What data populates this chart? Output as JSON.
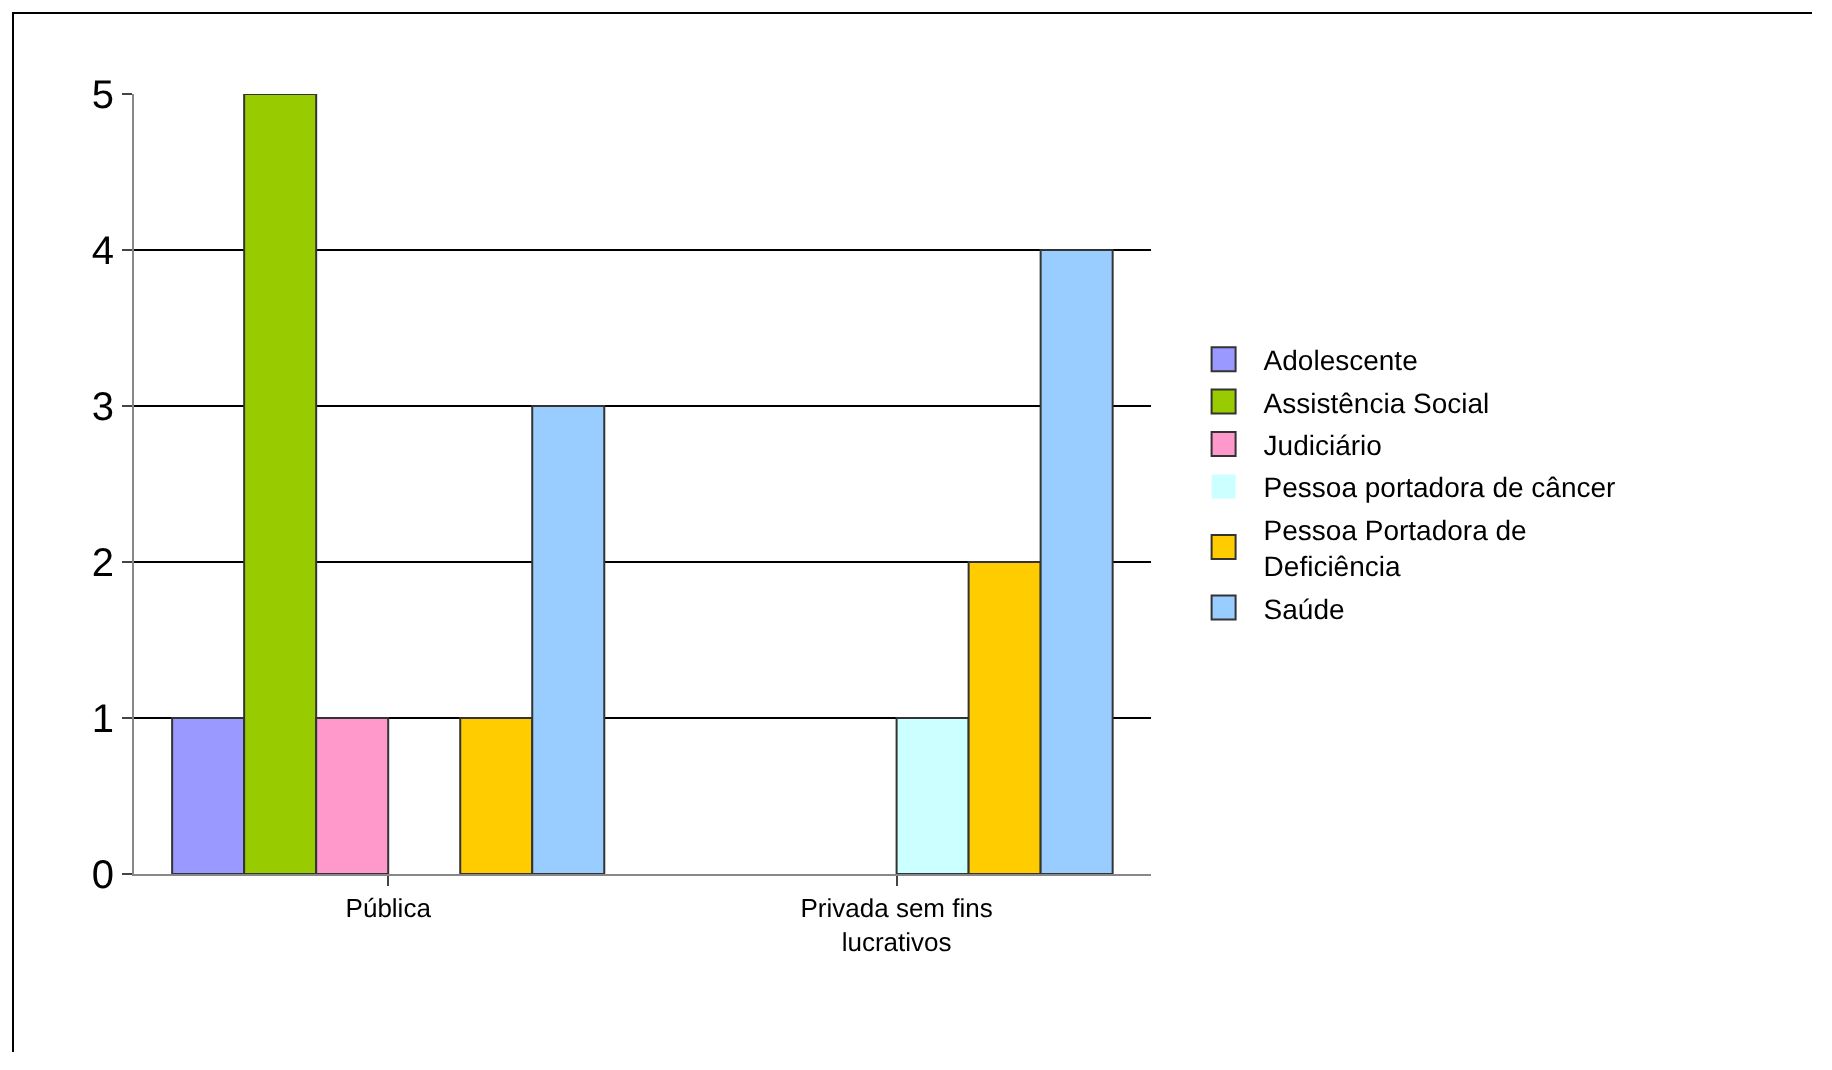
{
  "chart_data": {
    "type": "bar",
    "categories": [
      "Pública",
      "Privada sem fins lucrativos"
    ],
    "series": [
      {
        "name": "Adolescente",
        "color": "#9999ff",
        "values": [
          1,
          0
        ]
      },
      {
        "name": "Assistência Social",
        "color": "#99cc00",
        "values": [
          5,
          0
        ]
      },
      {
        "name": "Judiciário",
        "color": "#ff99cc",
        "values": [
          1,
          0
        ]
      },
      {
        "name": "Pessoa portadora de câncer",
        "color": "#ccffff",
        "values": [
          0,
          1
        ]
      },
      {
        "name": "Pessoa Portadora de Deficiência",
        "color": "#ffcc00",
        "values": [
          1,
          2
        ]
      },
      {
        "name": "Saúde",
        "color": "#99ccff",
        "values": [
          3,
          4
        ]
      }
    ],
    "ylim": [
      0,
      5
    ],
    "yticks": [
      0,
      1,
      2,
      3,
      4,
      5
    ],
    "grid": "y",
    "legend": "right"
  }
}
